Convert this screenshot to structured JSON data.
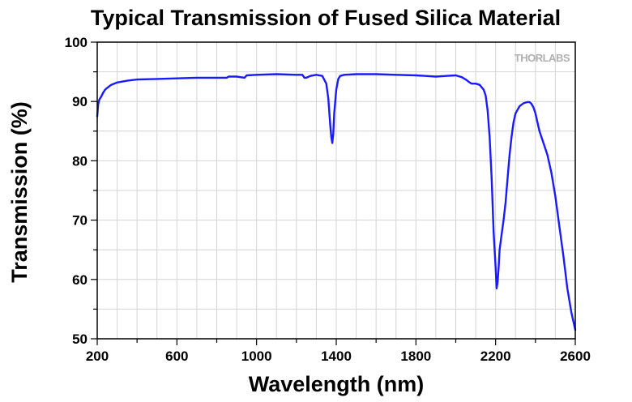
{
  "chart_data": {
    "type": "line",
    "title": "Typical Transmission of Fused Silica Material",
    "xlabel": "Wavelength (nm)",
    "ylabel": "Transmission (%)",
    "xlim": [
      200,
      2600
    ],
    "ylim": [
      50,
      100
    ],
    "x_ticks": [
      200,
      600,
      1000,
      1400,
      1800,
      2200,
      2600
    ],
    "y_ticks": [
      50,
      60,
      70,
      80,
      90,
      100
    ],
    "grid": true,
    "watermark": "THORLABS",
    "series": [
      {
        "color": "#1a1aff",
        "x": [
          200,
          205,
          210,
          220,
          230,
          240,
          250,
          270,
          300,
          350,
          400,
          500,
          600,
          700,
          800,
          850,
          860,
          900,
          940,
          950,
          1000,
          1100,
          1200,
          1230,
          1240,
          1250,
          1270,
          1300,
          1330,
          1350,
          1360,
          1370,
          1375,
          1380,
          1385,
          1390,
          1400,
          1410,
          1420,
          1440,
          1500,
          1600,
          1700,
          1800,
          1850,
          1900,
          1950,
          2000,
          2030,
          2050,
          2070,
          2080,
          2100,
          2120,
          2140,
          2150,
          2160,
          2170,
          2180,
          2190,
          2200,
          2205,
          2210,
          2215,
          2220,
          2230,
          2240,
          2250,
          2260,
          2270,
          2280,
          2290,
          2300,
          2320,
          2340,
          2360,
          2370,
          2380,
          2390,
          2400,
          2410,
          2420,
          2440,
          2460,
          2480,
          2500,
          2520,
          2540,
          2560,
          2580,
          2600
        ],
        "y": [
          87.5,
          89.5,
          90.3,
          90.8,
          91.5,
          92.0,
          92.3,
          92.8,
          93.2,
          93.5,
          93.7,
          93.8,
          93.9,
          94.0,
          94.0,
          94.0,
          94.2,
          94.2,
          94.0,
          94.4,
          94.5,
          94.6,
          94.5,
          94.5,
          94.0,
          94.0,
          94.3,
          94.5,
          94.3,
          93.0,
          90.5,
          86.0,
          84.0,
          83.0,
          84.5,
          88.0,
          92.0,
          93.8,
          94.3,
          94.5,
          94.6,
          94.6,
          94.5,
          94.4,
          94.3,
          94.2,
          94.3,
          94.4,
          94.1,
          93.7,
          93.2,
          93.0,
          93.0,
          92.8,
          92.0,
          91.0,
          88.5,
          84.0,
          77.0,
          68.0,
          62.0,
          58.5,
          59.5,
          62.0,
          65.0,
          67.5,
          70.0,
          73.0,
          77.0,
          81.0,
          84.0,
          86.5,
          88.0,
          89.2,
          89.7,
          89.9,
          89.9,
          89.6,
          89.0,
          88.0,
          86.5,
          85.0,
          83.0,
          81.0,
          78.0,
          74.0,
          69.0,
          64.0,
          58.5,
          54.5,
          51.5
        ]
      }
    ]
  }
}
